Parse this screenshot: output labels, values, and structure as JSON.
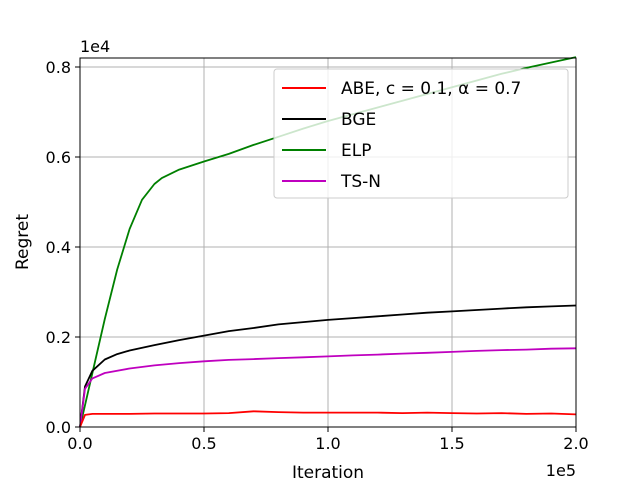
{
  "chart_data": {
    "type": "line",
    "xlabel": "Iteration",
    "ylabel": "Regret",
    "x_multiplier": "1e5",
    "y_multiplier": "1e4",
    "xlim": [
      0,
      2.0
    ],
    "ylim": [
      0,
      0.82
    ],
    "xticks": [
      0.0,
      0.5,
      1.0,
      1.5,
      2.0
    ],
    "xtick_labels": [
      "0.0",
      "0.5",
      "1.0",
      "1.5",
      "2.0"
    ],
    "yticks": [
      0.0,
      0.2,
      0.4,
      0.6,
      0.8
    ],
    "ytick_labels": [
      "0.0",
      "0.2",
      "0.4",
      "0.6",
      "0.8"
    ],
    "grid": true,
    "legend_position": "top-right",
    "series": [
      {
        "name": "ABE, c = 0.1, α = 0.7",
        "color": "#ff0000",
        "x": [
          0,
          0.02,
          0.05,
          0.1,
          0.2,
          0.3,
          0.4,
          0.5,
          0.6,
          0.7,
          0.8,
          0.9,
          1.0,
          1.1,
          1.2,
          1.3,
          1.4,
          1.5,
          1.6,
          1.7,
          1.8,
          1.9,
          2.0
        ],
        "y": [
          0,
          0.027,
          0.029,
          0.029,
          0.029,
          0.03,
          0.03,
          0.03,
          0.031,
          0.035,
          0.033,
          0.032,
          0.032,
          0.032,
          0.032,
          0.031,
          0.032,
          0.031,
          0.03,
          0.031,
          0.029,
          0.03,
          0.028
        ]
      },
      {
        "name": "BGE",
        "color": "#000000",
        "x": [
          0,
          0.02,
          0.05,
          0.1,
          0.15,
          0.2,
          0.3,
          0.4,
          0.5,
          0.6,
          0.7,
          0.8,
          0.9,
          1.0,
          1.1,
          1.2,
          1.3,
          1.4,
          1.5,
          1.6,
          1.7,
          1.8,
          1.9,
          2.0
        ],
        "y": [
          0,
          0.09,
          0.125,
          0.15,
          0.162,
          0.17,
          0.182,
          0.193,
          0.203,
          0.213,
          0.22,
          0.228,
          0.233,
          0.238,
          0.242,
          0.246,
          0.25,
          0.254,
          0.257,
          0.26,
          0.263,
          0.266,
          0.268,
          0.27
        ]
      },
      {
        "name": "ELP",
        "color": "#008000",
        "x": [
          0,
          0.05,
          0.1,
          0.15,
          0.2,
          0.25,
          0.3,
          0.33,
          0.4,
          0.5,
          0.6,
          0.7,
          0.8,
          0.9,
          1.0,
          1.1,
          1.2,
          1.3,
          1.4,
          1.5,
          1.6,
          1.7,
          1.8,
          1.9,
          2.0
        ],
        "y": [
          0,
          0.12,
          0.24,
          0.35,
          0.44,
          0.505,
          0.54,
          0.553,
          0.572,
          0.59,
          0.607,
          0.627,
          0.645,
          0.663,
          0.68,
          0.695,
          0.71,
          0.725,
          0.74,
          0.755,
          0.77,
          0.785,
          0.798,
          0.81,
          0.822
        ]
      },
      {
        "name": "TS-N",
        "color": "#bf00bf",
        "x": [
          0,
          0.02,
          0.05,
          0.1,
          0.2,
          0.3,
          0.4,
          0.5,
          0.6,
          0.7,
          0.8,
          0.9,
          1.0,
          1.1,
          1.2,
          1.3,
          1.4,
          1.5,
          1.6,
          1.7,
          1.8,
          1.9,
          2.0
        ],
        "y": [
          0,
          0.085,
          0.108,
          0.12,
          0.13,
          0.137,
          0.142,
          0.146,
          0.149,
          0.151,
          0.153,
          0.155,
          0.157,
          0.159,
          0.161,
          0.163,
          0.165,
          0.167,
          0.169,
          0.171,
          0.172,
          0.174,
          0.175
        ]
      }
    ]
  }
}
